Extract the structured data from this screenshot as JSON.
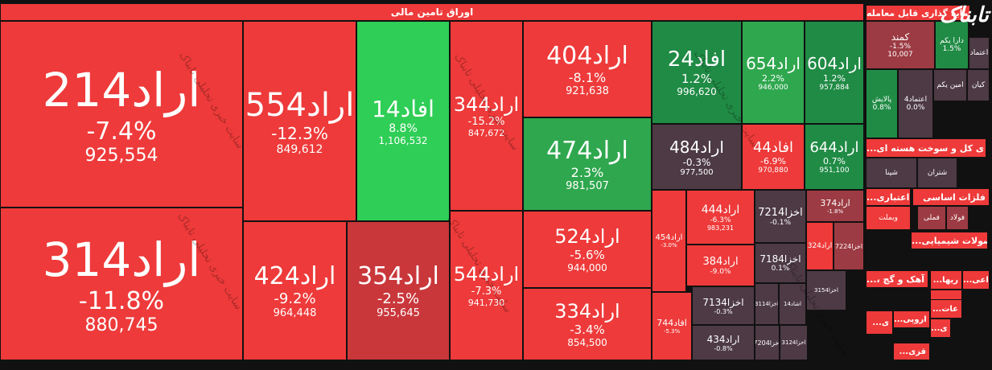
{
  "logo_text": "تابناک",
  "watermark_text": "سایت خبری تحلیلی تابناک",
  "main_sector": {
    "label": "اوراق تامین مالی"
  },
  "colors": {
    "red": "#ee3a3a",
    "deep_red": "#c9373b",
    "green": "#2fce56",
    "dark_green": "#208b45",
    "mid_green": "#2fa74e",
    "dark_gray": "#4d3a44",
    "muted_red": "#9c3b43"
  },
  "chart_data": {
    "type": "treemap",
    "title": "اوراق تامین مالی",
    "tiles": [
      {
        "name": "اراد214",
        "change": "-7.4%",
        "price": "925,554",
        "color": "red"
      },
      {
        "name": "اراد314",
        "change": "-11.8%",
        "price": "880,745",
        "color": "red"
      },
      {
        "name": "اراد554",
        "change": "-12.3%",
        "price": "849,612",
        "color": "red"
      },
      {
        "name": "اراد424",
        "change": "-9.2%",
        "price": "964,448",
        "color": "red"
      },
      {
        "name": "افاد14",
        "change": "8.8%",
        "price": "1,106,532",
        "color": "green"
      },
      {
        "name": "اراد354",
        "change": "-2.5%",
        "price": "955,645",
        "color": "deep_red"
      },
      {
        "name": "اراد344",
        "change": "-15.2%",
        "price": "847,672",
        "color": "red"
      },
      {
        "name": "اراد544",
        "change": "-7.3%",
        "price": "941,730",
        "color": "red"
      },
      {
        "name": "اراد404",
        "change": "-8.1%",
        "price": "921,638",
        "color": "red"
      },
      {
        "name": "اراد474",
        "change": "2.3%",
        "price": "981,507",
        "color": "mid_green"
      },
      {
        "name": "اراد524",
        "change": "-5.6%",
        "price": "944,000",
        "color": "red"
      },
      {
        "name": "اراد334",
        "change": "-3.4%",
        "price": "854,500",
        "color": "red"
      },
      {
        "name": "افاد24",
        "change": "1.2%",
        "price": "996,620",
        "color": "dark_green"
      },
      {
        "name": "اراد654",
        "change": "2.2%",
        "price": "946,000",
        "color": "mid_green"
      },
      {
        "name": "اراد604",
        "change": "1.2%",
        "price": "957,884",
        "color": "dark_green"
      },
      {
        "name": "اراد484",
        "change": "-0.3%",
        "price": "977,500",
        "color": "dark_gray"
      },
      {
        "name": "افاد44",
        "change": "-6.9%",
        "price": "970,880",
        "color": "red"
      },
      {
        "name": "اراد644",
        "change": "0.7%",
        "price": "951,100",
        "color": "dark_green"
      },
      {
        "name": "اراد444",
        "change": "-6.3%",
        "price": "983,231",
        "color": "red"
      },
      {
        "name": "اراد454",
        "change": "-3.0%",
        "price": "",
        "color": "red"
      },
      {
        "name": "اراد384",
        "change": "-9.0%",
        "price": "",
        "color": "red"
      },
      {
        "name": "اخزا7214",
        "change": "-0.1%",
        "price": "",
        "color": "dark_gray"
      },
      {
        "name": "اخزا7184",
        "change": "0.1%",
        "price": "",
        "color": "dark_gray"
      },
      {
        "name": "اراد374",
        "change": "-1.8%",
        "price": "",
        "color": "muted_red"
      },
      {
        "name": "اراد324",
        "change": "",
        "price": "",
        "color": "red"
      },
      {
        "name": "اخزا7224",
        "change": "",
        "price": "",
        "color": "muted_red"
      },
      {
        "name": "اخزا7134",
        "change": "-0.3%",
        "price": "",
        "color": "dark_gray"
      },
      {
        "name": "افاد744",
        "change": "-5.3%",
        "price": "",
        "color": "red"
      },
      {
        "name": "اراد434",
        "change": "-0.8%",
        "price": "",
        "color": "dark_gray"
      },
      {
        "name": "اخزا7204",
        "change": "",
        "price": "",
        "color": "dark_gray"
      },
      {
        "name": "اخزا3114",
        "change": "",
        "price": "",
        "color": "dark_gray"
      },
      {
        "name": "اشاد14",
        "change": "",
        "price": "",
        "color": "dark_gray"
      },
      {
        "name": "اخزا3124",
        "change": "",
        "price": "",
        "color": "dark_gray"
      },
      {
        "name": "اخزا3154",
        "change": "",
        "price": "",
        "color": "dark_gray"
      }
    ]
  },
  "side": {
    "headers": [
      {
        "label": "سرمایه گذاری قابل معامله"
      },
      {
        "label": "...ی کل و سوخت هسته ای"
      },
      {
        "label": "...اعتباری"
      },
      {
        "label": "فلزات اساسی"
      },
      {
        "label": "...صولات شیمیایی"
      },
      {
        "label": "...، آهک و گچ"
      }
    ],
    "tiles": [
      {
        "name": "کمند",
        "change": "-1.5%",
        "price": "10,007",
        "color": "muted_red"
      },
      {
        "name": "دارا یکم",
        "change": "1.5%",
        "color": "dark_green"
      },
      {
        "name": "اعتماد",
        "change": "",
        "color": "dark_gray"
      },
      {
        "name": "پالایش",
        "change": "0.8%",
        "color": "dark_green"
      },
      {
        "name": "اعتماد4",
        "change": "0.0%",
        "color": "dark_gray"
      },
      {
        "name": "امین یکم",
        "change": "",
        "color": "dark_gray"
      },
      {
        "name": "کیان",
        "change": "",
        "color": "dark_gray"
      },
      {
        "name": "شپنا",
        "change": "",
        "color": "dark_gray"
      },
      {
        "name": "شتران",
        "change": "",
        "color": "dark_gray"
      },
      {
        "name": "وبملت",
        "change": "",
        "color": "red"
      },
      {
        "name": "فولاد",
        "change": "",
        "color": "muted_red"
      },
      {
        "name": "فملی",
        "change": "",
        "color": "muted_red"
      }
    ],
    "small_labels": [
      "...ریها",
      "...اعی",
      "...ر",
      "...عات",
      "...ی",
      "...اروپی",
      "...ی",
      "...قزی"
    ]
  }
}
